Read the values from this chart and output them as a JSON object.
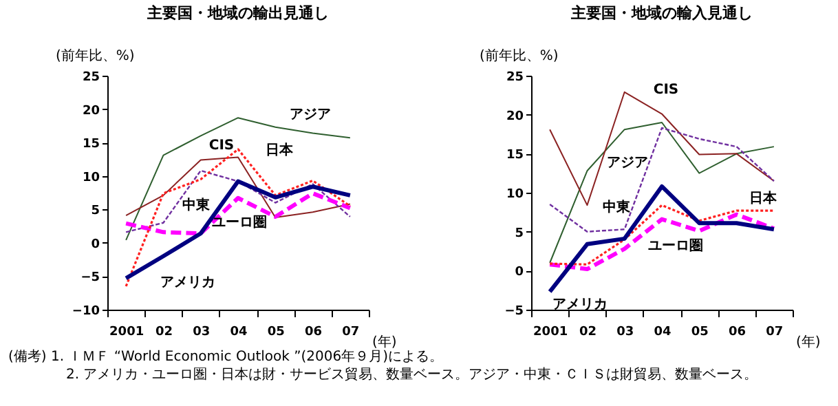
{
  "chart_data": [
    {
      "type": "line",
      "title": "主要国・地域の輸出見通し",
      "ylabel": "(前年比、%)",
      "xlabel": "(年)",
      "categories": [
        "2001",
        "02",
        "03",
        "04",
        "05",
        "06",
        "07"
      ],
      "ylim": [
        -10,
        25
      ],
      "yticks": [
        -10,
        -5,
        0,
        5,
        10,
        15,
        20,
        25
      ],
      "grid": false,
      "legend": false,
      "series": [
        {
          "name": "アジア",
          "color": "#2f5f2f",
          "line_style": "solid",
          "values": [
            0.4,
            13.1,
            16.0,
            18.7,
            17.3,
            16.4,
            15.7
          ]
        },
        {
          "name": "CIS",
          "color": "#8b2222",
          "line_style": "solid",
          "values": [
            4.1,
            7.1,
            12.4,
            12.8,
            3.8,
            4.6,
            5.8
          ]
        },
        {
          "name": "中東",
          "color": "#7030a0",
          "line_style": "dashed",
          "values": [
            1.6,
            3.0,
            10.8,
            9.2,
            6.0,
            8.8,
            3.9
          ]
        },
        {
          "name": "ユーロ圏",
          "color": "#ff00ff",
          "line_style": "dashed",
          "values": [
            2.9,
            1.6,
            1.4,
            6.7,
            3.9,
            7.4,
            5.2
          ]
        },
        {
          "name": "日本",
          "color": "#ff2020",
          "line_style": "dotted",
          "values": [
            -6.5,
            7.4,
            9.5,
            14.0,
            7.1,
            9.3,
            5.5
          ]
        },
        {
          "name": "アメリカ",
          "color": "#000080",
          "line_style": "solid",
          "values": [
            -5.3,
            -2.0,
            1.4,
            9.2,
            6.8,
            8.4,
            7.1
          ]
        }
      ]
    },
    {
      "type": "line",
      "title": "主要国・地域の輸入見通し",
      "ylabel": "(前年比、%)",
      "xlabel": "(年)",
      "categories": [
        "2001",
        "02",
        "03",
        "04",
        "05",
        "06",
        "07"
      ],
      "ylim": [
        -5,
        25
      ],
      "yticks": [
        -5,
        0,
        5,
        10,
        15,
        20,
        25
      ],
      "grid": false,
      "legend": false,
      "annotations": [
        "(備考) 1. ＩＭＦ “World Economic Outlook ”(2006年９月)による。",
        "2. アメリカ・ユーロ圏・日本は財・サービス貿易、数量ベース。アジア・中東・ＣＩＳは財貿易、数量ベース。"
      ],
      "series": [
        {
          "name": "アジア",
          "color": "#2f5f2f",
          "line_style": "solid",
          "values": [
            1.0,
            12.8,
            18.1,
            19.0,
            12.5,
            15.0,
            15.9
          ]
        },
        {
          "name": "CIS",
          "color": "#8b2222",
          "line_style": "solid",
          "values": [
            18.1,
            8.4,
            22.9,
            20.1,
            14.9,
            15.0,
            11.5
          ]
        },
        {
          "name": "中東",
          "color": "#7030a0",
          "line_style": "dashed",
          "values": [
            8.5,
            5.0,
            5.3,
            18.3,
            16.9,
            15.9,
            11.5
          ]
        },
        {
          "name": "ユーロ圏",
          "color": "#ff00ff",
          "line_style": "dashed",
          "values": [
            0.8,
            0.2,
            2.8,
            6.6,
            5.1,
            7.2,
            5.4
          ]
        },
        {
          "name": "日本",
          "color": "#ff2020",
          "line_style": "dotted",
          "values": [
            0.9,
            0.8,
            4.0,
            8.4,
            6.4,
            7.7,
            7.7
          ]
        },
        {
          "name": "アメリカ",
          "color": "#000080",
          "line_style": "solid",
          "values": [
            -2.7,
            3.4,
            4.1,
            10.8,
            6.1,
            6.1,
            5.3
          ]
        }
      ]
    }
  ]
}
